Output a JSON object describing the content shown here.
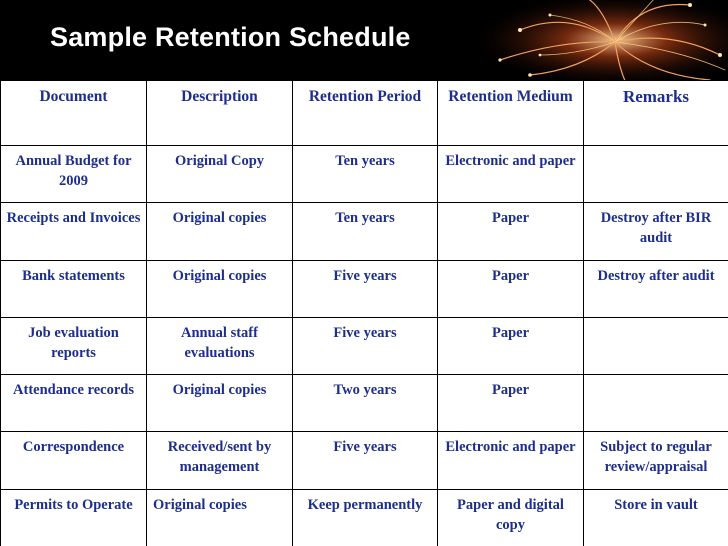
{
  "slide": {
    "title": "Sample Retention Schedule"
  },
  "table": {
    "headers": [
      "Document",
      "Description",
      "Retention Period",
      "Retention Medium",
      "Remarks"
    ],
    "rows": [
      [
        "Annual Budget for 2009",
        "Original Copy",
        "Ten years",
        "Electronic and paper",
        ""
      ],
      [
        "Receipts and Invoices",
        "Original copies",
        "Ten years",
        "Paper",
        "Destroy after BIR audit"
      ],
      [
        "Bank statements",
        "Original copies",
        "Five years",
        "Paper",
        "Destroy after audit"
      ],
      [
        "Job evaluation reports",
        "Annual staff evaluations",
        "Five years",
        "Paper",
        ""
      ],
      [
        "Attendance records",
        "Original copies",
        "Two years",
        "Paper",
        ""
      ],
      [
        "Correspondence",
        "Received/sent by management",
        "Five years",
        "Electronic and paper",
        "Subject to regular review/appraisal"
      ],
      [
        "Permits to Operate",
        "Original copies",
        "Keep permanently",
        "Paper and digital copy",
        "Store in vault"
      ]
    ]
  },
  "colors": {
    "text": "#1d2e8c",
    "header_bg": "#000000",
    "title": "#ffffff"
  },
  "icons": {
    "decoration": "firework-icon"
  }
}
